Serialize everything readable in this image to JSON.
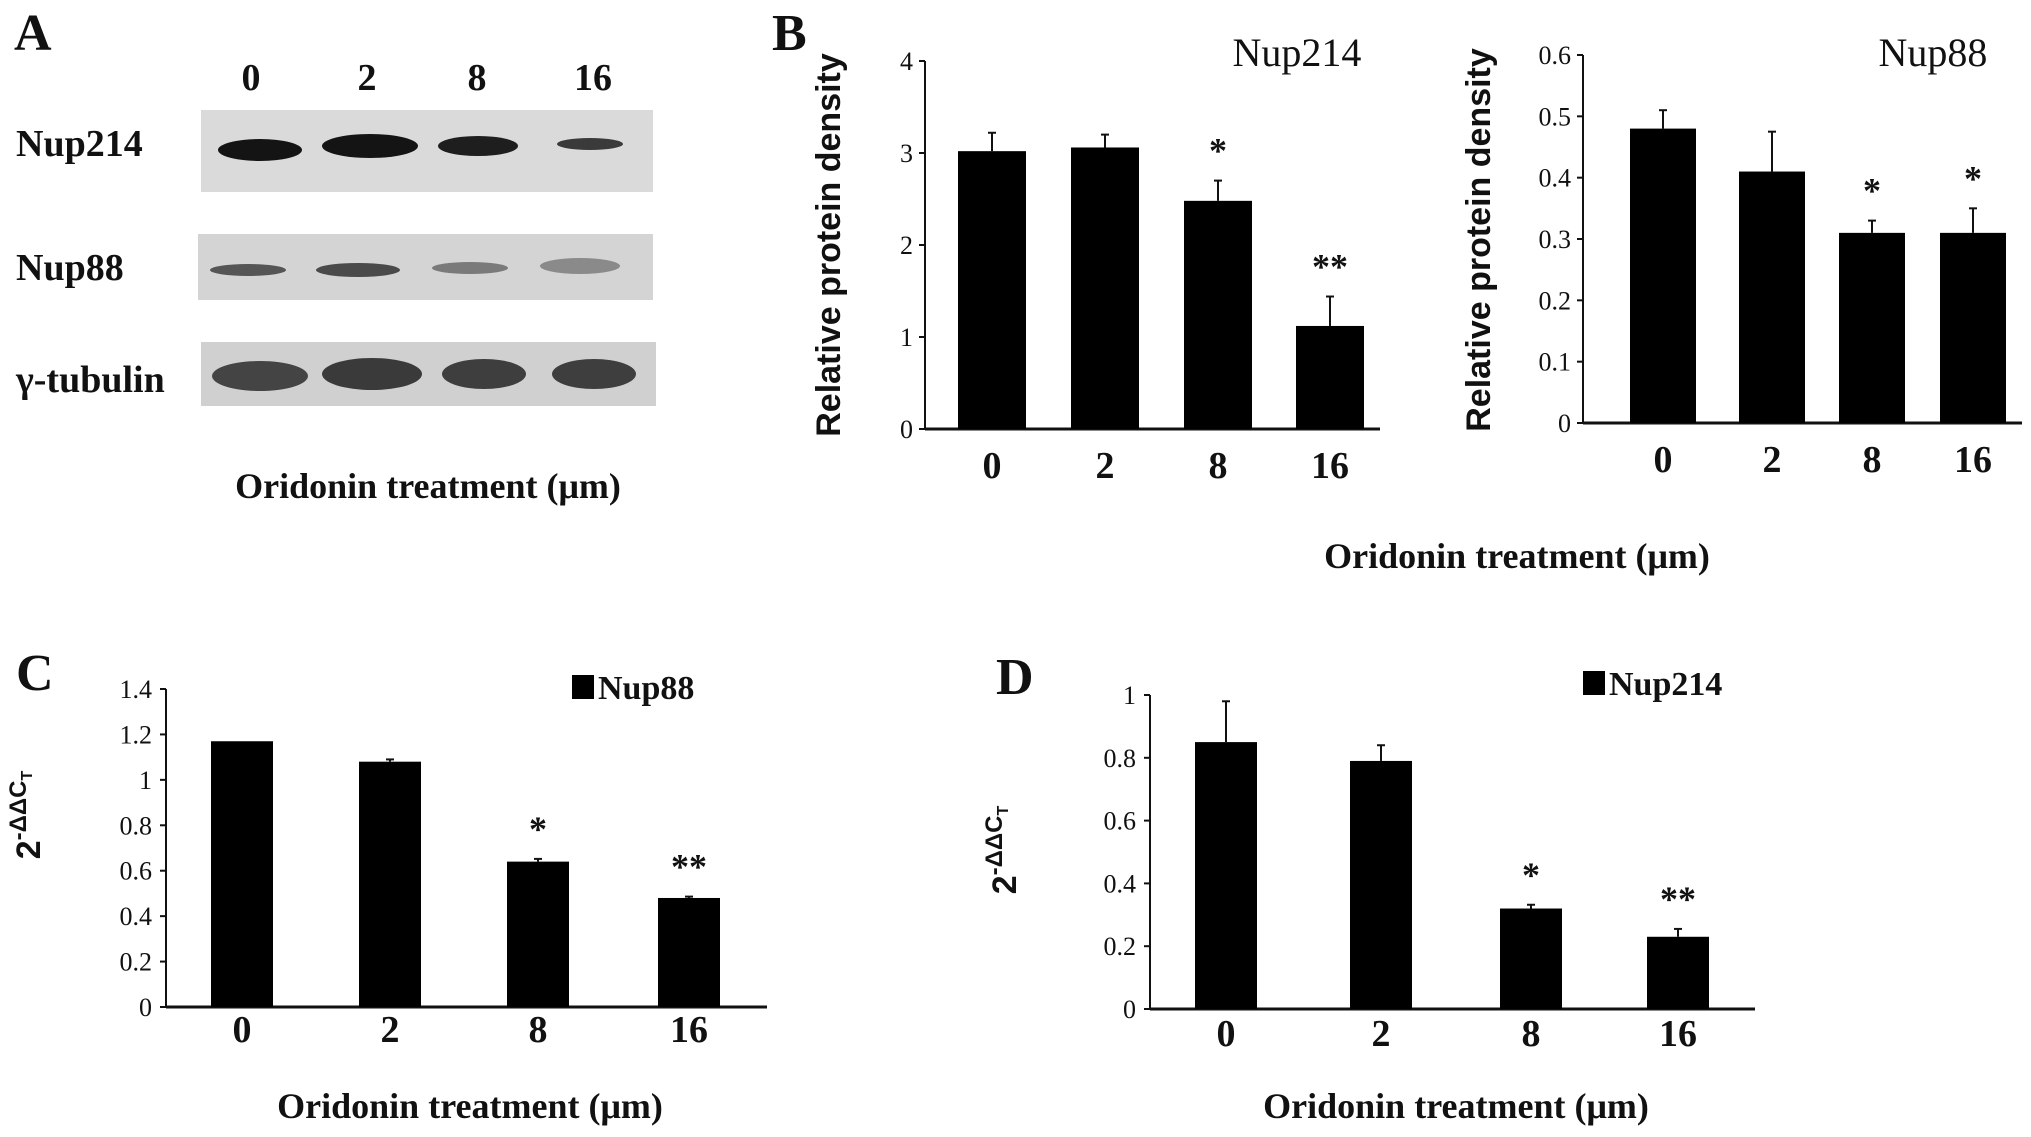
{
  "panel_a": {
    "label": "A",
    "lanes": [
      "0",
      "2",
      "8",
      "16"
    ],
    "rows": [
      "Nup214",
      "Nup88",
      "γ-tubulin"
    ],
    "xlabel": "Oridonin treatment (μm)"
  },
  "panel_b": {
    "label": "B",
    "xlabel": "Oridonin treatment (μm)"
  },
  "panel_c": {
    "label": "C"
  },
  "panel_d": {
    "label": "D"
  },
  "colors": {
    "bar": "#000000",
    "blot_bg": "#d9d9d9",
    "band": "#1a1a1a"
  },
  "chart_data": [
    {
      "type": "bar",
      "title": "Nup214",
      "ylabel": "Relative protein  density",
      "categories": [
        "0",
        "2",
        "8",
        "16"
      ],
      "values": [
        3.02,
        3.06,
        2.48,
        1.12
      ],
      "errors": [
        0.2,
        0.14,
        0.22,
        0.32
      ],
      "significance": [
        "",
        "",
        "*",
        "**"
      ],
      "ylim": [
        0,
        4
      ],
      "yticks": [
        "0",
        "1",
        "2",
        "3",
        "4"
      ],
      "grid": false
    },
    {
      "type": "bar",
      "title": "Nup88",
      "ylabel": "Relative protein  density",
      "categories": [
        "0",
        "2",
        "8",
        "16"
      ],
      "values": [
        0.48,
        0.41,
        0.31,
        0.31
      ],
      "errors": [
        0.03,
        0.065,
        0.02,
        0.04
      ],
      "significance": [
        "",
        "",
        "*",
        "*"
      ],
      "ylim": [
        0,
        0.6
      ],
      "yticks": [
        "0",
        "0.1",
        "0.2",
        "0.3",
        "0.4",
        "0.5",
        "0.6"
      ],
      "grid": false
    },
    {
      "type": "bar",
      "legend": "Nup88",
      "legend_position": "top-right",
      "ylabel_base": "2",
      "ylabel_sup": "-ΔΔC",
      "ylabel_sub": "T",
      "xlabel": "Oridonin treatment (μm)",
      "categories": [
        "0",
        "2",
        "8",
        "16"
      ],
      "values": [
        1.17,
        1.08,
        0.64,
        0.48
      ],
      "errors": [
        0,
        0.01,
        0.012,
        0.006
      ],
      "significance": [
        "",
        "",
        "*",
        "**"
      ],
      "ylim": [
        0,
        1.4
      ],
      "yticks": [
        "0",
        "0.2",
        "0.4",
        "0.6",
        "0.8",
        "1",
        "1.2",
        "1.4"
      ],
      "grid": false
    },
    {
      "type": "bar",
      "legend": "Nup214",
      "legend_position": "top-right",
      "ylabel_base": "2",
      "ylabel_sup": "-ΔΔC",
      "ylabel_sub": "T",
      "xlabel": "Oridonin treatment (μm)",
      "categories": [
        "0",
        "2",
        "8",
        "16"
      ],
      "values": [
        0.85,
        0.79,
        0.32,
        0.23
      ],
      "errors": [
        0.13,
        0.05,
        0.012,
        0.025
      ],
      "significance": [
        "",
        "",
        "*",
        "**"
      ],
      "ylim": [
        0,
        1
      ],
      "yticks": [
        "0",
        "0.2",
        "0.4",
        "0.6",
        "0.8",
        "1"
      ],
      "grid": false
    }
  ]
}
